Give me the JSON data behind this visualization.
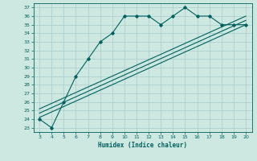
{
  "xlabel": "Humidex (Indice chaleur)",
  "bg_color": "#cce8e0",
  "grid_color": "#aacccc",
  "line_color": "#006060",
  "xlim": [
    2.5,
    20.5
  ],
  "ylim": [
    22.5,
    37.5
  ],
  "xticks": [
    3,
    4,
    5,
    6,
    7,
    8,
    9,
    10,
    11,
    12,
    13,
    14,
    15,
    16,
    17,
    18,
    19,
    20
  ],
  "yticks": [
    23,
    24,
    25,
    26,
    27,
    28,
    29,
    30,
    31,
    32,
    33,
    34,
    35,
    36,
    37
  ],
  "humidex_x": [
    3,
    4,
    5,
    6,
    7,
    8,
    9,
    10,
    11,
    12,
    13,
    14,
    15,
    16,
    17,
    18,
    19,
    20
  ],
  "humidex_y": [
    24.0,
    23.0,
    26.0,
    29.0,
    31.0,
    33.0,
    34.0,
    36.0,
    36.0,
    36.0,
    35.0,
    36.0,
    37.0,
    36.0,
    36.0,
    35.0,
    35.0,
    35.0
  ],
  "line1_x": [
    3,
    20
  ],
  "line1_y": [
    24.2,
    35.0
  ],
  "line2_x": [
    3,
    20
  ],
  "line2_y": [
    24.7,
    35.5
  ],
  "line3_x": [
    3,
    20
  ],
  "line3_y": [
    25.2,
    36.0
  ]
}
